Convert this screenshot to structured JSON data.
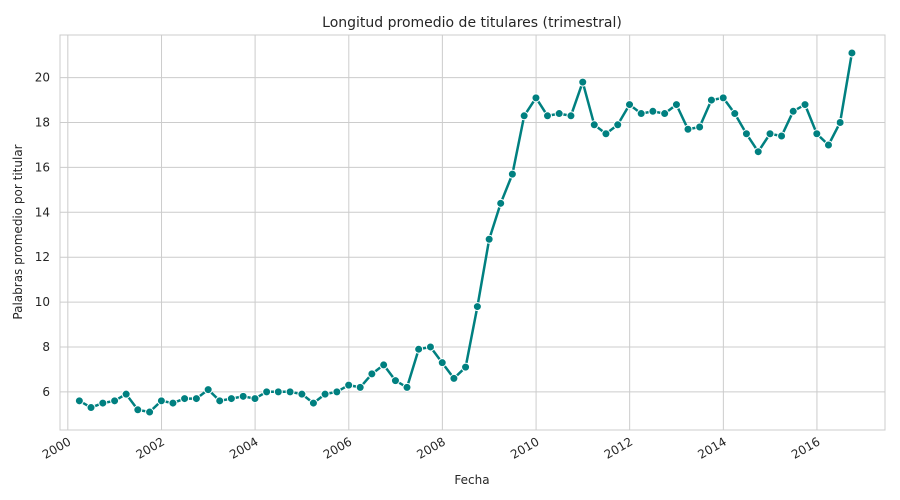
{
  "chart_data": {
    "type": "line",
    "title": "Longitud promedio de titulares (trimestral)",
    "xlabel": "Fecha",
    "ylabel": "Palabras promedio por titular",
    "x_ticks": [
      "2000",
      "2002",
      "2004",
      "2006",
      "2008",
      "2010",
      "2012",
      "2014",
      "2016"
    ],
    "y_ticks": [
      "6",
      "8",
      "10",
      "12",
      "14",
      "16",
      "18",
      "20"
    ],
    "xlim": [
      "1999-11-01",
      "2017-06-15"
    ],
    "ylim": [
      4.3,
      21.9
    ],
    "grid": true,
    "color": "#008080",
    "series": [
      {
        "x": [
          "2000-03-31",
          "2000-06-30",
          "2000-09-30",
          "2000-12-31",
          "2001-03-31",
          "2001-06-30",
          "2001-09-30",
          "2001-12-31",
          "2002-03-31",
          "2002-06-30",
          "2002-09-30",
          "2002-12-31",
          "2003-03-31",
          "2003-06-30",
          "2003-09-30",
          "2003-12-31",
          "2004-03-31",
          "2004-06-30",
          "2004-09-30",
          "2004-12-31",
          "2005-03-31",
          "2005-06-30",
          "2005-09-30",
          "2005-12-31",
          "2006-03-31",
          "2006-06-30",
          "2006-09-30",
          "2006-12-31",
          "2007-03-31",
          "2007-06-30",
          "2007-09-30",
          "2007-12-31",
          "2008-03-31",
          "2008-06-30",
          "2008-09-30",
          "2008-12-31",
          "2009-03-31",
          "2009-06-30",
          "2009-09-30",
          "2009-12-31",
          "2010-03-31",
          "2010-06-30",
          "2010-09-30",
          "2010-12-31",
          "2011-03-31",
          "2011-06-30",
          "2011-09-30",
          "2011-12-31",
          "2012-03-31",
          "2012-06-30",
          "2012-09-30",
          "2012-12-31",
          "2013-03-31",
          "2013-06-30",
          "2013-09-30",
          "2013-12-31",
          "2014-03-31",
          "2014-06-30",
          "2014-09-30",
          "2014-12-31",
          "2015-03-31",
          "2015-06-30",
          "2015-09-30",
          "2015-12-31",
          "2016-03-31",
          "2016-06-30",
          "2016-09-30"
        ],
        "values": [
          5.6,
          5.3,
          5.5,
          5.6,
          5.9,
          5.2,
          5.1,
          5.6,
          5.5,
          5.7,
          5.7,
          6.1,
          5.6,
          5.7,
          5.8,
          5.7,
          6.0,
          6.0,
          6.0,
          5.9,
          5.5,
          5.9,
          6.0,
          6.3,
          6.2,
          6.8,
          7.2,
          6.5,
          6.2,
          7.9,
          8.0,
          7.3,
          6.6,
          7.1,
          9.8,
          12.8,
          14.4,
          15.7,
          18.3,
          19.1,
          18.3,
          18.4,
          18.3,
          19.8,
          17.9,
          17.5,
          17.9,
          18.8,
          18.4,
          18.5,
          18.4,
          18.8,
          17.7,
          17.8,
          19.0,
          19.1,
          18.4,
          17.5,
          16.7,
          17.5,
          17.4,
          18.5,
          18.8,
          17.5,
          17.0,
          18.0,
          21.1
        ]
      }
    ]
  }
}
